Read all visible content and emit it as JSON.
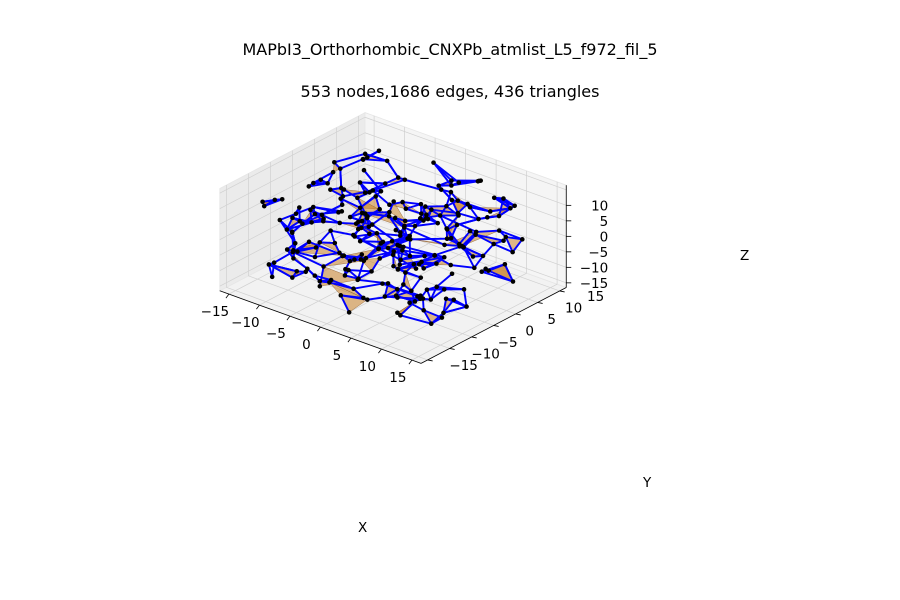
{
  "chart_data": {
    "type": "3d-network",
    "title": "MAPbI3_Orthorhombic_CNXPb_atmlist_L5_f972_fil_5",
    "subtitle": "553 nodes,1686 edges, 436 triangles",
    "xlabel": "X",
    "ylabel": "Y",
    "zlabel": "Z",
    "xlim": [
      -15,
      15
    ],
    "ylim": [
      -15,
      15
    ],
    "zlim": [
      -15,
      15
    ],
    "x_ticks": [
      "−15",
      "−10",
      "−5",
      "0",
      "5",
      "10",
      "15"
    ],
    "y_ticks": [
      "−15",
      "−10",
      "−5",
      "0",
      "5",
      "10",
      "15"
    ],
    "z_ticks": [
      "−15",
      "−10",
      "−5",
      "0",
      "5",
      "10"
    ],
    "stats": {
      "nodes": 553,
      "edges": 1686,
      "triangles": 436
    },
    "colors": {
      "edge": "#0000ff",
      "node": "#000000",
      "triangle": "#c8822a",
      "pane": "#f2f2f2",
      "grid": "#d0d0d0"
    },
    "grid": true
  }
}
